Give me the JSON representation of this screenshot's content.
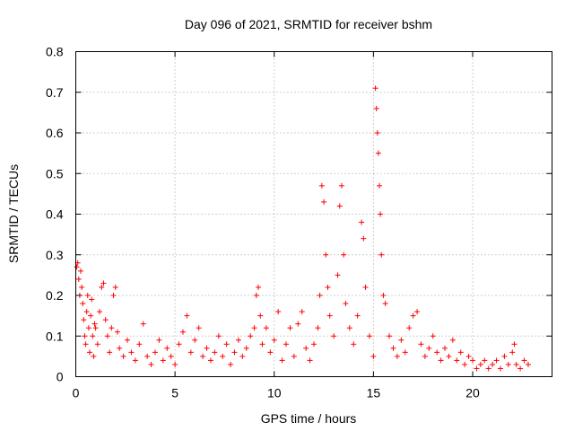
{
  "chart_data": {
    "type": "scatter",
    "title": "Day 096 of 2021, SRMTID for receiver bshm",
    "xlabel": "GPS time / hours",
    "ylabel": "SRMTID / TECUs",
    "xlim": [
      0,
      24
    ],
    "ylim": [
      0,
      0.8
    ],
    "xticks": [
      0,
      5,
      10,
      15,
      20
    ],
    "yticks": [
      0,
      0.1,
      0.2,
      0.3,
      0.4,
      0.5,
      0.6,
      0.7,
      0.8
    ],
    "xtick_labels": [
      "0",
      "5",
      "10",
      "15",
      "20"
    ],
    "ytick_labels": [
      "0",
      "0.1",
      "0.2",
      "0.3",
      "0.4",
      "0.5",
      "0.6",
      "0.7",
      "0.8"
    ],
    "grid": true,
    "marker": "plus",
    "color": "#ff0000",
    "x_range_of_data": [
      0,
      23
    ],
    "points": [
      [
        0.05,
        0.27
      ],
      [
        0.1,
        0.28
      ],
      [
        0.15,
        0.24
      ],
      [
        0.2,
        0.2
      ],
      [
        0.25,
        0.26
      ],
      [
        0.3,
        0.22
      ],
      [
        0.35,
        0.18
      ],
      [
        0.4,
        0.14
      ],
      [
        0.45,
        0.1
      ],
      [
        0.5,
        0.08
      ],
      [
        0.55,
        0.16
      ],
      [
        0.6,
        0.2
      ],
      [
        0.65,
        0.12
      ],
      [
        0.7,
        0.06
      ],
      [
        0.75,
        0.15
      ],
      [
        0.8,
        0.19
      ],
      [
        0.85,
        0.1
      ],
      [
        0.9,
        0.05
      ],
      [
        0.95,
        0.13
      ],
      [
        1.0,
        0.12
      ],
      [
        1.1,
        0.08
      ],
      [
        1.2,
        0.16
      ],
      [
        1.3,
        0.22
      ],
      [
        1.4,
        0.23
      ],
      [
        1.5,
        0.14
      ],
      [
        1.6,
        0.1
      ],
      [
        1.7,
        0.06
      ],
      [
        1.8,
        0.12
      ],
      [
        1.9,
        0.2
      ],
      [
        2.0,
        0.22
      ],
      [
        2.1,
        0.11
      ],
      [
        2.2,
        0.07
      ],
      [
        2.4,
        0.05
      ],
      [
        2.6,
        0.09
      ],
      [
        2.8,
        0.06
      ],
      [
        3.0,
        0.04
      ],
      [
        3.2,
        0.08
      ],
      [
        3.4,
        0.13
      ],
      [
        3.6,
        0.05
      ],
      [
        3.8,
        0.03
      ],
      [
        4.0,
        0.06
      ],
      [
        4.2,
        0.09
      ],
      [
        4.4,
        0.04
      ],
      [
        4.6,
        0.07
      ],
      [
        4.8,
        0.05
      ],
      [
        5.0,
        0.03
      ],
      [
        5.2,
        0.08
      ],
      [
        5.4,
        0.11
      ],
      [
        5.6,
        0.15
      ],
      [
        5.8,
        0.06
      ],
      [
        6.0,
        0.09
      ],
      [
        6.2,
        0.12
      ],
      [
        6.4,
        0.05
      ],
      [
        6.6,
        0.07
      ],
      [
        6.8,
        0.04
      ],
      [
        7.0,
        0.06
      ],
      [
        7.2,
        0.1
      ],
      [
        7.4,
        0.05
      ],
      [
        7.6,
        0.08
      ],
      [
        7.8,
        0.03
      ],
      [
        8.0,
        0.06
      ],
      [
        8.2,
        0.09
      ],
      [
        8.4,
        0.05
      ],
      [
        8.6,
        0.07
      ],
      [
        8.8,
        0.1
      ],
      [
        9.0,
        0.12
      ],
      [
        9.1,
        0.2
      ],
      [
        9.2,
        0.22
      ],
      [
        9.3,
        0.15
      ],
      [
        9.4,
        0.08
      ],
      [
        9.6,
        0.12
      ],
      [
        9.8,
        0.06
      ],
      [
        10.0,
        0.09
      ],
      [
        10.2,
        0.16
      ],
      [
        10.4,
        0.04
      ],
      [
        10.6,
        0.08
      ],
      [
        10.8,
        0.12
      ],
      [
        11.0,
        0.05
      ],
      [
        11.2,
        0.13
      ],
      [
        11.4,
        0.16
      ],
      [
        11.6,
        0.07
      ],
      [
        11.8,
        0.04
      ],
      [
        12.0,
        0.08
      ],
      [
        12.2,
        0.12
      ],
      [
        12.3,
        0.2
      ],
      [
        12.4,
        0.47
      ],
      [
        12.5,
        0.43
      ],
      [
        12.6,
        0.3
      ],
      [
        12.7,
        0.22
      ],
      [
        12.8,
        0.15
      ],
      [
        13.0,
        0.1
      ],
      [
        13.2,
        0.25
      ],
      [
        13.3,
        0.42
      ],
      [
        13.4,
        0.47
      ],
      [
        13.5,
        0.3
      ],
      [
        13.6,
        0.18
      ],
      [
        13.8,
        0.12
      ],
      [
        14.0,
        0.08
      ],
      [
        14.2,
        0.15
      ],
      [
        14.4,
        0.38
      ],
      [
        14.5,
        0.34
      ],
      [
        14.6,
        0.22
      ],
      [
        14.8,
        0.1
      ],
      [
        15.0,
        0.05
      ],
      [
        15.1,
        0.71
      ],
      [
        15.15,
        0.66
      ],
      [
        15.2,
        0.6
      ],
      [
        15.25,
        0.55
      ],
      [
        15.3,
        0.47
      ],
      [
        15.35,
        0.4
      ],
      [
        15.4,
        0.3
      ],
      [
        15.5,
        0.2
      ],
      [
        15.6,
        0.18
      ],
      [
        15.8,
        0.1
      ],
      [
        16.0,
        0.07
      ],
      [
        16.2,
        0.05
      ],
      [
        16.4,
        0.09
      ],
      [
        16.6,
        0.06
      ],
      [
        16.8,
        0.12
      ],
      [
        17.0,
        0.15
      ],
      [
        17.2,
        0.16
      ],
      [
        17.4,
        0.08
      ],
      [
        17.6,
        0.05
      ],
      [
        17.8,
        0.07
      ],
      [
        18.0,
        0.1
      ],
      [
        18.2,
        0.06
      ],
      [
        18.4,
        0.04
      ],
      [
        18.6,
        0.07
      ],
      [
        18.8,
        0.05
      ],
      [
        19.0,
        0.09
      ],
      [
        19.2,
        0.04
      ],
      [
        19.4,
        0.06
      ],
      [
        19.6,
        0.03
      ],
      [
        19.8,
        0.05
      ],
      [
        20.0,
        0.04
      ],
      [
        20.2,
        0.02
      ],
      [
        20.4,
        0.03
      ],
      [
        20.6,
        0.04
      ],
      [
        20.8,
        0.02
      ],
      [
        21.0,
        0.03
      ],
      [
        21.2,
        0.04
      ],
      [
        21.4,
        0.02
      ],
      [
        21.6,
        0.05
      ],
      [
        21.8,
        0.03
      ],
      [
        22.0,
        0.06
      ],
      [
        22.1,
        0.08
      ],
      [
        22.2,
        0.03
      ],
      [
        22.4,
        0.02
      ],
      [
        22.6,
        0.04
      ],
      [
        22.8,
        0.03
      ]
    ]
  }
}
